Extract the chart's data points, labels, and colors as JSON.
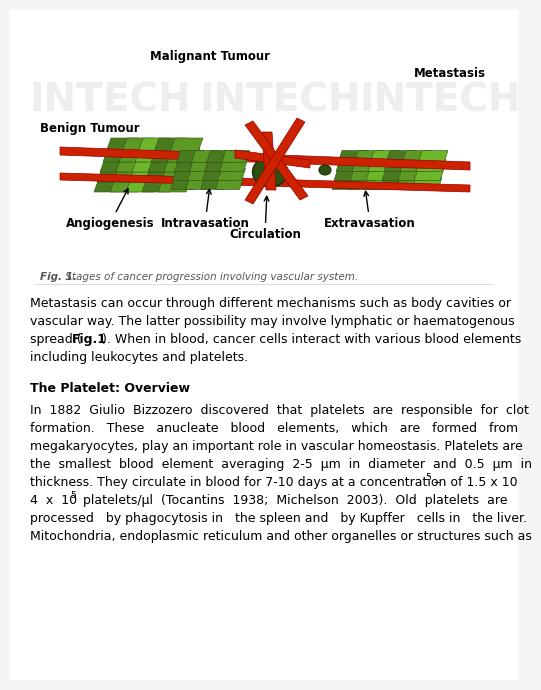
{
  "background_color": "#f5f5f5",
  "page_bg": "#ffffff",
  "fig_caption": "Fig. 1. Stages of cancer progression involving vascular system.",
  "fig_caption_bold": "Fig. 1.",
  "fig_caption_rest": " Stages of cancer progression involving vascular system.",
  "watermark_text": "INTECH",
  "paragraph1": "Metastasis can occur through different mechanisms such as body cavities or\nvascular way. The latter possibility may involve lymphatic or haematogenous\nspread (•Fig.1•). When in blood, cancer cells interact with various blood elements\nincluding leukocytes and platelets.",
  "section_title": "The Platelet: Overview",
  "paragraph2_lines": [
    "In  1882  Giulio  Bizzozero  discovered  that  platelets  are  responsible  for  clot",
    "formation.   These   anucleate   blood   elements,   which   are   formed   from",
    "megakaryocytes, play an important role in vascular homeostasis. Platelets are",
    "the  smallest  blood  element  averaging  2-5  μm  in  diameter  and  0.5  μm  in",
    "thickness. They circulate in blood for 7-10 days at a concentration of 1.5 x 10⁵ –",
    "4  x  10⁵  platelets/μl  (Tocantins  1938;  Michelson  2003).  Old  platelets  are",
    "processed   by phagocytosis in   the spleen and   by Kupffer   cells in   the liver.",
    "Mitochondria, endoplasmic reticulum and other organelles or structures such as"
  ],
  "diagram_labels": {
    "malignant_tumour": "Malignant Tumour",
    "benign_tumour": "Benign Tumour",
    "metastasis": "Metastasis",
    "angiogenesis": "Angiogenesis",
    "intravasation": "Intravasation",
    "circulation": "Circulation",
    "extravasation": "Extravasation"
  },
  "label_fontsize": 8.5,
  "caption_fontsize": 7.5,
  "body_fontsize": 9.0,
  "section_fontsize": 9.0
}
